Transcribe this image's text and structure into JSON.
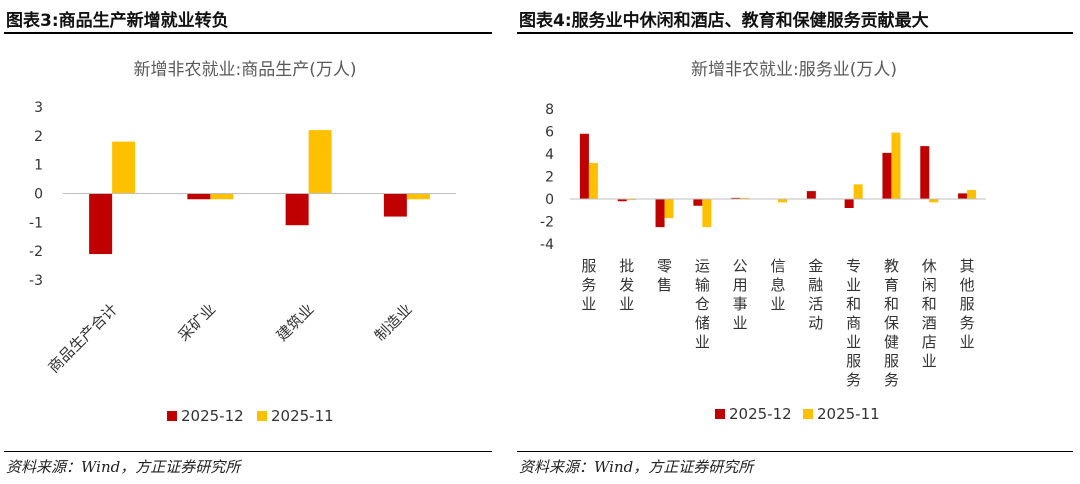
{
  "left": {
    "figure_title": "图表3:商品生产新增就业转负",
    "source": "资料来源：Wind，方正证券研究所",
    "chart_data": {
      "type": "bar",
      "title": "新增非农就业:商品生产(万人)",
      "categories": [
        "商品生产合计",
        "采矿业",
        "建筑业",
        "制造业"
      ],
      "series": [
        {
          "name": "2025-12",
          "values": [
            -2.1,
            -0.2,
            -1.1,
            -0.8
          ],
          "color": "#C00000"
        },
        {
          "name": "2025-11",
          "values": [
            1.8,
            -0.2,
            2.2,
            -0.2
          ],
          "color": "#FFC000"
        }
      ],
      "ylim": [
        -3,
        3
      ],
      "yticks": [
        3,
        2,
        1,
        0,
        -1,
        -2,
        -3
      ],
      "legend": "bottom"
    }
  },
  "right": {
    "figure_title": "图表4:服务业中休闲和酒店、教育和保健服务贡献最大",
    "source": "资料来源：Wind，方正证券研究所",
    "chart_data": {
      "type": "bar",
      "title": "新增非农就业:服务业(万人)",
      "categories": [
        "服务业",
        "批发业",
        "零售",
        "运输仓储业",
        "公用事业",
        "信息业",
        "金融活动",
        "专业和商业服务",
        "教育和保健服务",
        "休闲和酒店业",
        "其他服务业"
      ],
      "series": [
        {
          "name": "2025-12",
          "values": [
            5.8,
            -0.2,
            -2.5,
            -0.6,
            0.1,
            0.0,
            0.7,
            -0.8,
            4.1,
            4.7,
            0.5
          ],
          "color": "#C00000"
        },
        {
          "name": "2025-11",
          "values": [
            3.2,
            -0.1,
            -1.7,
            -2.5,
            0.1,
            -0.3,
            0.0,
            1.3,
            5.9,
            -0.3,
            0.8
          ],
          "color": "#FFC000"
        }
      ],
      "ylim": [
        -4,
        8
      ],
      "yticks": [
        8,
        6,
        4,
        2,
        0,
        -2,
        -4
      ],
      "legend": "bottom"
    }
  }
}
